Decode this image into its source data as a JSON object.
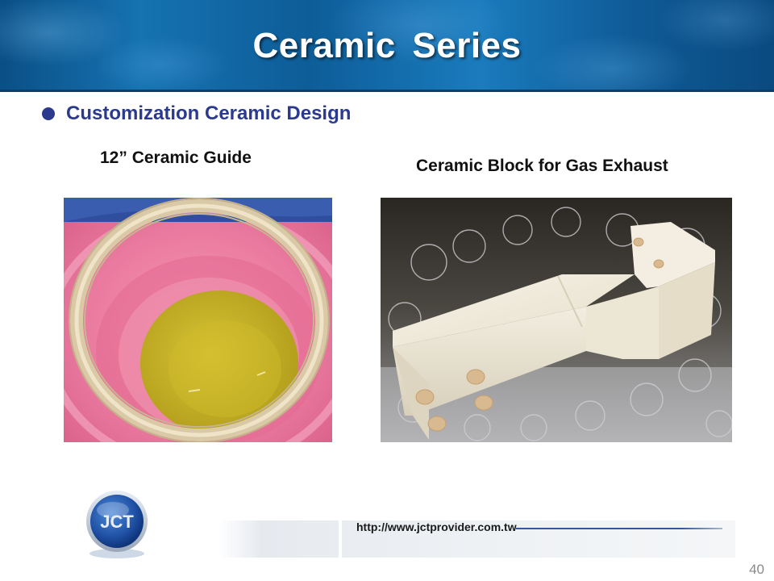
{
  "header": {
    "title": "Ceramic  Series"
  },
  "bullet": {
    "text": "Customization Ceramic Design"
  },
  "captions": {
    "left": "12” Ceramic Guide",
    "right": "Ceramic Block for Gas Exhaust"
  },
  "footer": {
    "url": "http://www.jctprovider.com.tw",
    "logo_text": "JCT",
    "page_number": "40"
  },
  "colors": {
    "header_blue": "#1672b0",
    "bullet_navy": "#2b3a8f",
    "foam_pink": "#e86f96",
    "ceramic_white": "#f4efe1"
  },
  "icons": {
    "bullet": "bullet-dot-icon",
    "logo": "jct-logo-icon"
  }
}
